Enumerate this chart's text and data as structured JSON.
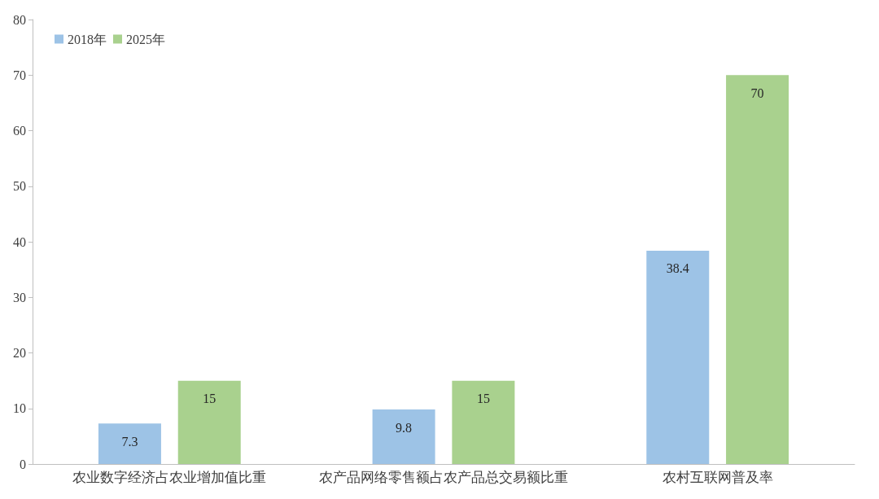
{
  "chart_data": {
    "type": "bar",
    "categories": [
      "农业数字经济占农业增加值比重",
      "农产品网络零售额占农产品总交易额比重",
      "农村互联网普及率"
    ],
    "series": [
      {
        "name": "2018年",
        "color": "#9dc3e6",
        "values": [
          7.3,
          9.8,
          38.4
        ]
      },
      {
        "name": "2025年",
        "color": "#a9d18e",
        "values": [
          15,
          15,
          70
        ]
      }
    ],
    "ylim": [
      0,
      80
    ],
    "yticks": [
      0,
      10,
      20,
      30,
      40,
      50,
      60,
      70,
      80
    ],
    "grid": false,
    "legend": "top left",
    "data_labels": true
  }
}
